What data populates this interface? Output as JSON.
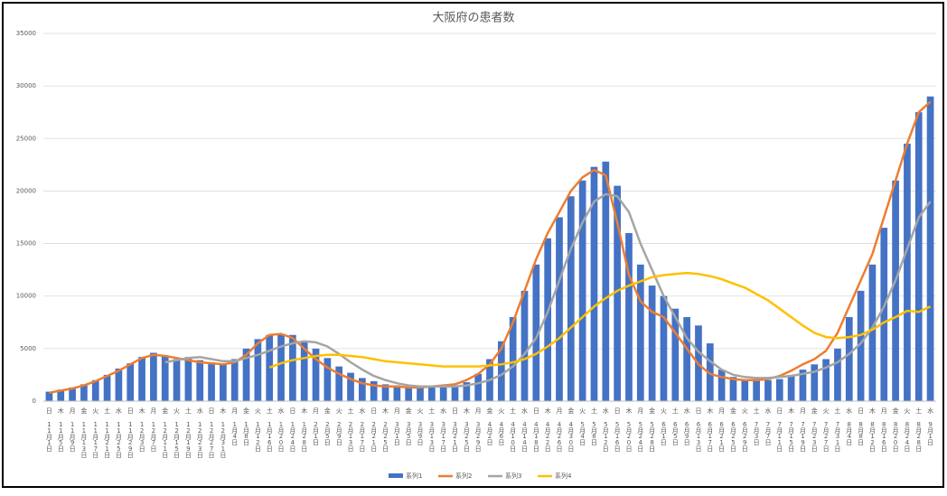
{
  "chart_data": {
    "type": "bar",
    "title": "大阪府の患者数",
    "categories": [
      "11月1日",
      "11月5日",
      "11月9日",
      "11月13日",
      "11月17日",
      "11月21日",
      "11月25日",
      "11月29日",
      "12月3日",
      "12月7日",
      "12月11日",
      "12月15日",
      "12月19日",
      "12月23日",
      "12月27日",
      "12月31日",
      "1月4日",
      "1月8日",
      "1月12日",
      "1月16日",
      "1月20日",
      "1月24日",
      "1月28日",
      "2月1日",
      "2月5日",
      "2月9日",
      "2月13日",
      "2月17日",
      "2月21日",
      "2月25日",
      "3月1日",
      "3月5日",
      "3月9日",
      "3月13日",
      "3月17日",
      "3月21日",
      "3月25日",
      "3月29日",
      "4月2日",
      "4月6日",
      "4月10日",
      "4月14日",
      "4月18日",
      "4月22日",
      "4月26日",
      "4月30日",
      "5月4日",
      "5月8日",
      "5月12日",
      "5月16日",
      "5月20日",
      "5月24日",
      "5月28日",
      "6月1日",
      "6月5日",
      "6月9日",
      "6月13日",
      "6月17日",
      "6月21日",
      "6月25日",
      "6月29日",
      "7月3日",
      "7月7日",
      "7月11日",
      "7月15日",
      "7月19日",
      "7月23日",
      "7月27日",
      "7月31日",
      "8月4日",
      "8月8日",
      "8月12日",
      "8月16日",
      "8月20日",
      "8月24日",
      "8月28日",
      "9月1日"
    ],
    "weekdays": [
      "日",
      "木",
      "月",
      "金",
      "火",
      "土",
      "水",
      "日",
      "木",
      "月",
      "金",
      "火",
      "土",
      "水",
      "日",
      "木",
      "月",
      "金",
      "火",
      "土",
      "水",
      "日",
      "木",
      "月",
      "金",
      "火",
      "土",
      "水",
      "日",
      "木",
      "月",
      "金",
      "火",
      "土",
      "水",
      "日",
      "木",
      "月",
      "金",
      "火",
      "土",
      "水",
      "日",
      "木",
      "月",
      "金",
      "火",
      "土",
      "水",
      "日",
      "木",
      "月",
      "金",
      "火",
      "土",
      "水",
      "日",
      "木",
      "月",
      "金",
      "火",
      "土",
      "水",
      "日",
      "木",
      "月",
      "金",
      "火",
      "土",
      "水",
      "日",
      "木",
      "月",
      "金",
      "火",
      "土",
      "水"
    ],
    "series": [
      {
        "name": "系列1",
        "type": "bar",
        "color": "#4472c4",
        "values": [
          900,
          1100,
          1300,
          1600,
          2000,
          2500,
          3100,
          3600,
          4200,
          4600,
          4300,
          4000,
          4200,
          3900,
          3700,
          3600,
          4000,
          5000,
          5900,
          6300,
          6400,
          6300,
          5700,
          5000,
          4100,
          3300,
          2700,
          2200,
          1900,
          1600,
          1500,
          1400,
          1300,
          1300,
          1400,
          1500,
          1800,
          2600,
          4000,
          5700,
          8000,
          10500,
          13000,
          15500,
          17500,
          19500,
          21000,
          22300,
          22800,
          20500,
          16000,
          13000,
          11000,
          10000,
          8800,
          8000,
          7200,
          5500,
          3000,
          2300,
          2100,
          2000,
          2000,
          2100,
          2500,
          3000,
          3500,
          4000,
          5000,
          8000,
          10500,
          13000,
          16500,
          21000,
          24500,
          27500,
          29000
        ]
      },
      {
        "name": "系列2",
        "type": "line",
        "color": "#ed7d31",
        "values": [
          800,
          1000,
          1200,
          1500,
          1900,
          2400,
          2900,
          3500,
          4100,
          4400,
          4300,
          4100,
          3900,
          3700,
          3600,
          3500,
          3700,
          4400,
          5500,
          6300,
          6400,
          6000,
          5000,
          4000,
          3200,
          2600,
          2100,
          1700,
          1500,
          1400,
          1400,
          1300,
          1300,
          1400,
          1500,
          1600,
          2000,
          2600,
          3500,
          5000,
          7500,
          10500,
          13500,
          16000,
          18000,
          20000,
          21300,
          22000,
          21500,
          17000,
          12000,
          9500,
          8500,
          8000,
          6500,
          5000,
          3500,
          2600,
          2300,
          2100,
          2000,
          2000,
          2100,
          2400,
          2900,
          3500,
          4000,
          4800,
          6500,
          9000,
          11500,
          14000,
          17500,
          21000,
          24500,
          27500,
          28500
        ]
      },
      {
        "name": "系列3",
        "type": "line",
        "color": "#a5a5a5",
        "values": [
          null,
          null,
          null,
          null,
          null,
          null,
          null,
          null,
          null,
          null,
          3700,
          3900,
          4100,
          4200,
          4000,
          3800,
          3800,
          4100,
          4400,
          4800,
          5200,
          5500,
          5700,
          5600,
          5200,
          4500,
          3700,
          3000,
          2400,
          2000,
          1700,
          1500,
          1400,
          1400,
          1400,
          1400,
          1500,
          1700,
          2000,
          2500,
          3300,
          4500,
          6000,
          8500,
          11500,
          14500,
          17000,
          19000,
          19700,
          19500,
          18000,
          15000,
          12500,
          10000,
          8000,
          6000,
          4700,
          3800,
          3000,
          2500,
          2300,
          2200,
          2200,
          2300,
          2400,
          2600,
          2800,
          3200,
          3700,
          4500,
          5500,
          7000,
          9000,
          11500,
          14500,
          17500,
          19000
        ]
      },
      {
        "name": "系列4",
        "type": "line",
        "color": "#ffc000",
        "values": [
          null,
          null,
          null,
          null,
          null,
          null,
          null,
          null,
          null,
          null,
          null,
          null,
          null,
          null,
          null,
          null,
          null,
          null,
          null,
          3200,
          3600,
          3900,
          4100,
          4300,
          4400,
          4400,
          4300,
          4200,
          4000,
          3800,
          3700,
          3600,
          3500,
          3400,
          3300,
          3300,
          3300,
          3300,
          3400,
          3500,
          3700,
          4000,
          4500,
          5200,
          6000,
          7000,
          8000,
          9000,
          9800,
          10500,
          11000,
          11400,
          11800,
          12000,
          12100,
          12200,
          12100,
          11900,
          11600,
          11200,
          10800,
          10200,
          9600,
          8800,
          8000,
          7200,
          6500,
          6100,
          6000,
          6100,
          6300,
          6800,
          7500,
          8000,
          8600,
          8500,
          9000
        ]
      }
    ],
    "ylim": [
      0,
      35000
    ],
    "yticks": [
      0,
      5000,
      10000,
      15000,
      20000,
      25000,
      30000,
      35000
    ],
    "grid": true,
    "legend": "bottom"
  }
}
